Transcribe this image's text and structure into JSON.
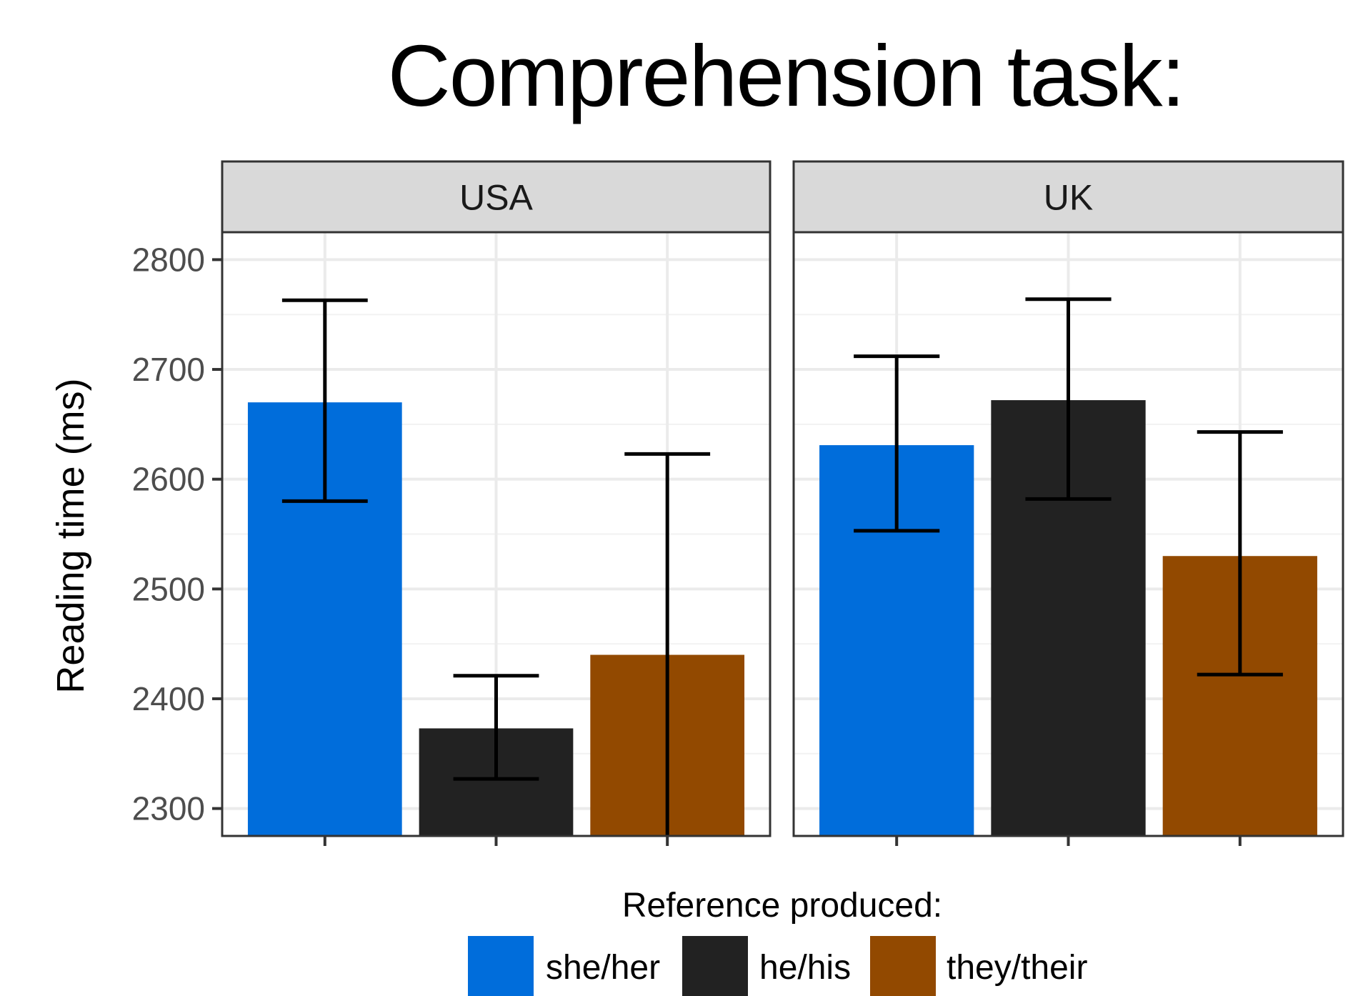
{
  "chart_data": {
    "type": "bar",
    "title": "Comprehension task:",
    "ylabel": "Reading time (ms)",
    "xlabel": "",
    "ylim": [
      2275,
      2825
    ],
    "yticks": [
      2300,
      2400,
      2500,
      2600,
      2700,
      2800
    ],
    "grid": true,
    "facets": [
      "USA",
      "UK"
    ],
    "categories": [
      "she/her",
      "he/his",
      "they/their"
    ],
    "series": [
      {
        "facet": "USA",
        "values": [
          2670,
          2373,
          2440
        ],
        "error_low": [
          2580,
          2327,
          2275
        ],
        "error_high": [
          2763,
          2421,
          2623
        ]
      },
      {
        "facet": "UK",
        "values": [
          2631,
          2672,
          2530
        ],
        "error_low": [
          2553,
          2582,
          2422
        ],
        "error_high": [
          2712,
          2764,
          2643
        ]
      }
    ],
    "colors": {
      "she/her": "#006ddb",
      "he/his": "#222222",
      "they/their": "#924900"
    },
    "legend": {
      "title": "Reference produced:",
      "placement": "bottom",
      "entries": [
        "she/her",
        "he/his",
        "they/their"
      ]
    }
  }
}
